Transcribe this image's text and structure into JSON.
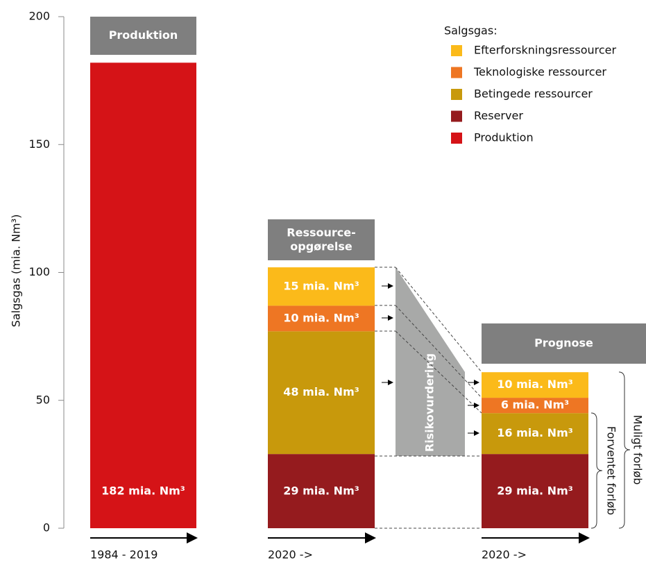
{
  "chart_data": {
    "type": "stacked_bar",
    "y_label": "Salgsgas (mia. Nm³)",
    "categories": [
      "1984 - 2019",
      "2020 ->",
      "2020 ->"
    ],
    "column_headers": [
      "Produktion",
      "Ressource-\nopgørelse",
      "Prognose"
    ],
    "legend_title": "Salgsgas:",
    "ylim": [
      0,
      200
    ],
    "yticks": [
      0,
      50,
      100,
      150,
      200
    ],
    "series": [
      {
        "name": "Produktion",
        "color": "#d51317",
        "values": [
          182,
          null,
          null
        ],
        "value_labels": [
          "182 mia. Nm³",
          null,
          null
        ]
      },
      {
        "name": "Reserver",
        "color": "#951b1e",
        "values": [
          null,
          29,
          29
        ],
        "value_labels": [
          null,
          "29 mia. Nm³",
          "29 mia. Nm³"
        ]
      },
      {
        "name": "Betingede ressourcer",
        "color": "#c8990c",
        "values": [
          null,
          48,
          16
        ],
        "value_labels": [
          null,
          "48 mia. Nm³",
          "16 mia. Nm³"
        ]
      },
      {
        "name": "Teknologiske ressourcer",
        "color": "#ee7623",
        "values": [
          null,
          10,
          6
        ],
        "value_labels": [
          null,
          "10 mia. Nm³",
          "6 mia. Nm³"
        ]
      },
      {
        "name": "Efterforskningsressourcer",
        "color": "#fbba1a",
        "values": [
          null,
          15,
          10
        ],
        "value_labels": [
          null,
          "15 mia. Nm³",
          "10 mia. Nm³"
        ]
      }
    ],
    "annotations": [
      "Risikovurdering",
      "Muligt forløb",
      "Forventet forløb"
    ]
  }
}
